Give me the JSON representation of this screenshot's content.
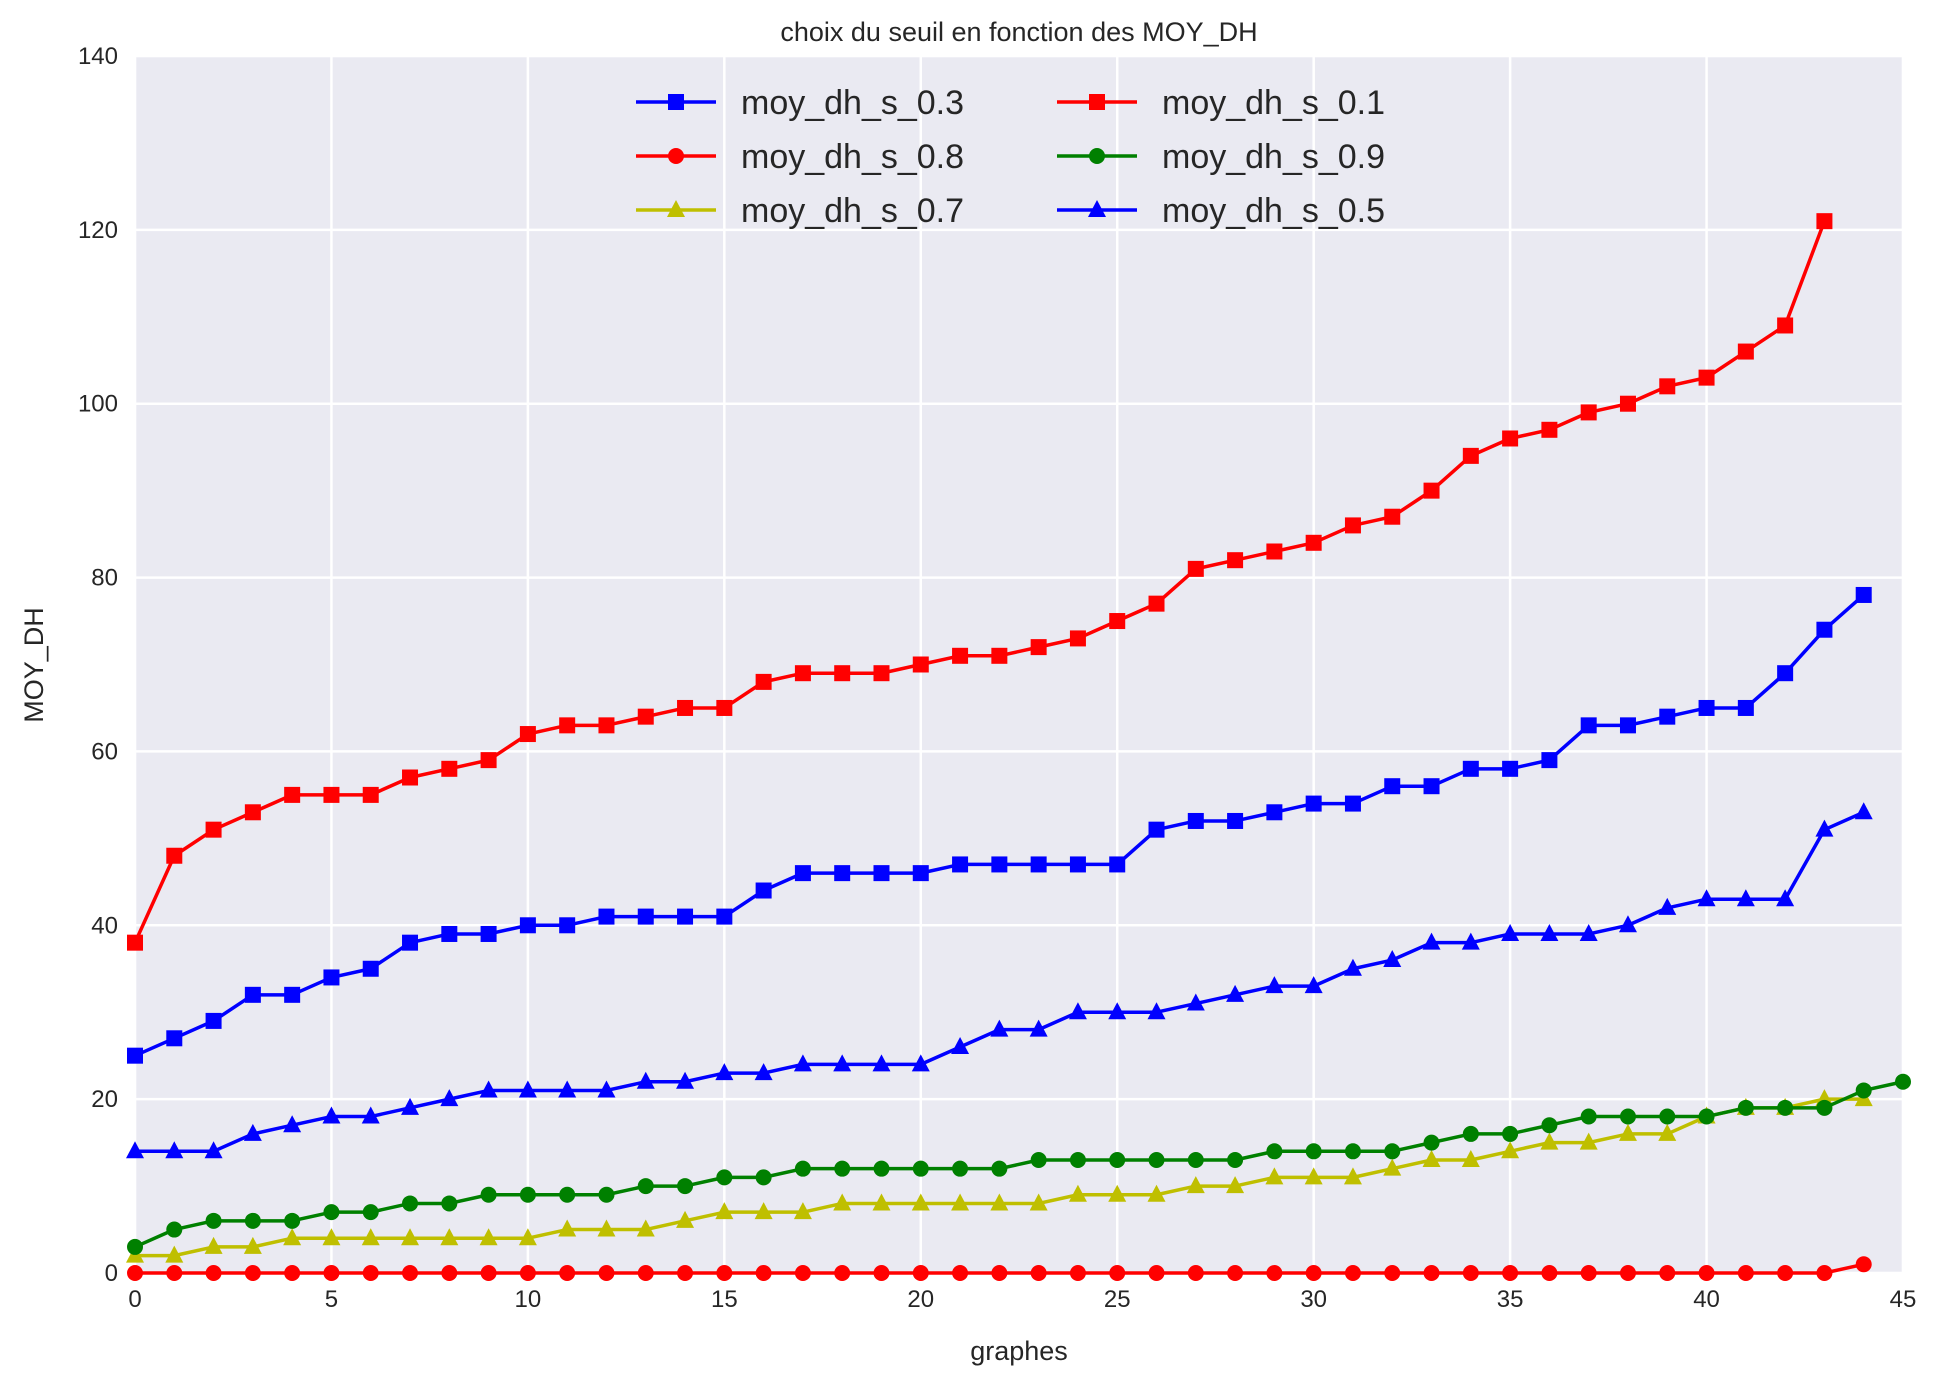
{
  "chart_data": {
    "type": "line",
    "title": "choix du seuil en fonction des MOY_DH",
    "xlabel": "graphes",
    "ylabel": "MOY_DH",
    "xlim": [
      0,
      45
    ],
    "ylim": [
      0,
      140
    ],
    "xticks": [
      "0",
      "5",
      "10",
      "15",
      "20",
      "25",
      "30",
      "35",
      "40",
      "45"
    ],
    "yticks": [
      "0",
      "20",
      "40",
      "60",
      "80",
      "100",
      "120",
      "140"
    ],
    "grid": true,
    "legend_position": "top-center",
    "legend_columns": 2,
    "series": [
      {
        "name": "moy_dh_s_0.3",
        "color": "#0000ff",
        "marker": "square",
        "x": [
          0,
          1,
          2,
          3,
          4,
          5,
          6,
          7,
          8,
          9,
          10,
          11,
          12,
          13,
          14,
          15,
          16,
          17,
          18,
          19,
          20,
          21,
          22,
          23,
          24,
          25,
          26,
          27,
          28,
          29,
          30,
          31,
          32,
          33,
          34,
          35,
          36,
          37,
          38,
          39,
          40,
          41,
          42,
          43,
          44
        ],
        "values": [
          25,
          27,
          29,
          32,
          32,
          34,
          35,
          38,
          39,
          39,
          40,
          40,
          41,
          41,
          41,
          41,
          44,
          46,
          46,
          46,
          46,
          47,
          47,
          47,
          47,
          47,
          51,
          52,
          52,
          53,
          54,
          54,
          56,
          56,
          58,
          58,
          59,
          63,
          63,
          64,
          65,
          65,
          69,
          74,
          78
        ]
      },
      {
        "name": "moy_dh_s_0.8",
        "color": "#ff0000",
        "marker": "circle",
        "x": [
          0,
          1,
          2,
          3,
          4,
          5,
          6,
          7,
          8,
          9,
          10,
          11,
          12,
          13,
          14,
          15,
          16,
          17,
          18,
          19,
          20,
          21,
          22,
          23,
          24,
          25,
          26,
          27,
          28,
          29,
          30,
          31,
          32,
          33,
          34,
          35,
          36,
          37,
          38,
          39,
          40,
          41,
          42,
          43,
          44
        ],
        "values": [
          0,
          0,
          0,
          0,
          0,
          0,
          0,
          0,
          0,
          0,
          0,
          0,
          0,
          0,
          0,
          0,
          0,
          0,
          0,
          0,
          0,
          0,
          0,
          0,
          0,
          0,
          0,
          0,
          0,
          0,
          0,
          0,
          0,
          0,
          0,
          0,
          0,
          0,
          0,
          0,
          0,
          0,
          0,
          0,
          1
        ]
      },
      {
        "name": "moy_dh_s_0.7",
        "color": "#bfbf00",
        "marker": "triangle",
        "x": [
          0,
          1,
          2,
          3,
          4,
          5,
          6,
          7,
          8,
          9,
          10,
          11,
          12,
          13,
          14,
          15,
          16,
          17,
          18,
          19,
          20,
          21,
          22,
          23,
          24,
          25,
          26,
          27,
          28,
          29,
          30,
          31,
          32,
          33,
          34,
          35,
          36,
          37,
          38,
          39,
          40,
          41,
          42,
          43,
          44
        ],
        "values": [
          2,
          2,
          3,
          3,
          4,
          4,
          4,
          4,
          4,
          4,
          4,
          5,
          5,
          5,
          6,
          7,
          7,
          7,
          8,
          8,
          8,
          8,
          8,
          8,
          9,
          9,
          9,
          10,
          10,
          11,
          11,
          11,
          12,
          13,
          13,
          14,
          15,
          15,
          16,
          16,
          18,
          19,
          19,
          20,
          20
        ]
      },
      {
        "name": "moy_dh_s_0.1",
        "color": "#ff0000",
        "marker": "square",
        "x": [
          0,
          1,
          2,
          3,
          4,
          5,
          6,
          7,
          8,
          9,
          10,
          11,
          12,
          13,
          14,
          15,
          16,
          17,
          18,
          19,
          20,
          21,
          22,
          23,
          24,
          25,
          26,
          27,
          28,
          29,
          30,
          31,
          32,
          33,
          34,
          35,
          36,
          37,
          38,
          39,
          40,
          41,
          42,
          43
        ],
        "values": [
          38,
          48,
          51,
          53,
          55,
          55,
          55,
          57,
          58,
          59,
          62,
          63,
          63,
          64,
          65,
          65,
          68,
          69,
          69,
          69,
          70,
          71,
          71,
          72,
          73,
          75,
          77,
          81,
          82,
          83,
          84,
          86,
          87,
          90,
          94,
          96,
          97,
          99,
          100,
          102,
          103,
          106,
          109,
          121
        ]
      },
      {
        "name": "moy_dh_s_0.9",
        "color": "#008000",
        "marker": "circle",
        "x": [
          0,
          1,
          2,
          3,
          4,
          5,
          6,
          7,
          8,
          9,
          10,
          11,
          12,
          13,
          14,
          15,
          16,
          17,
          18,
          19,
          20,
          21,
          22,
          23,
          24,
          25,
          26,
          27,
          28,
          29,
          30,
          31,
          32,
          33,
          34,
          35,
          36,
          37,
          38,
          39,
          40,
          41,
          42,
          43,
          44,
          45
        ],
        "values": [
          3,
          5,
          6,
          6,
          6,
          7,
          7,
          8,
          8,
          9,
          9,
          9,
          9,
          10,
          10,
          11,
          11,
          12,
          12,
          12,
          12,
          12,
          12,
          13,
          13,
          13,
          13,
          13,
          13,
          14,
          14,
          14,
          14,
          15,
          16,
          16,
          17,
          18,
          18,
          18,
          18,
          19,
          19,
          19,
          21,
          22
        ]
      },
      {
        "name": "moy_dh_s_0.5",
        "color": "#0000ff",
        "marker": "triangle",
        "x": [
          0,
          1,
          2,
          3,
          4,
          5,
          6,
          7,
          8,
          9,
          10,
          11,
          12,
          13,
          14,
          15,
          16,
          17,
          18,
          19,
          20,
          21,
          22,
          23,
          24,
          25,
          26,
          27,
          28,
          29,
          30,
          31,
          32,
          33,
          34,
          35,
          36,
          37,
          38,
          39,
          40,
          41,
          42,
          43,
          44
        ],
        "values": [
          14,
          14,
          14,
          16,
          17,
          18,
          18,
          19,
          20,
          21,
          21,
          21,
          21,
          22,
          22,
          23,
          23,
          24,
          24,
          24,
          24,
          26,
          28,
          28,
          30,
          30,
          30,
          31,
          32,
          33,
          33,
          35,
          36,
          38,
          38,
          39,
          39,
          39,
          40,
          42,
          43,
          43,
          43,
          51,
          53
        ]
      }
    ]
  }
}
